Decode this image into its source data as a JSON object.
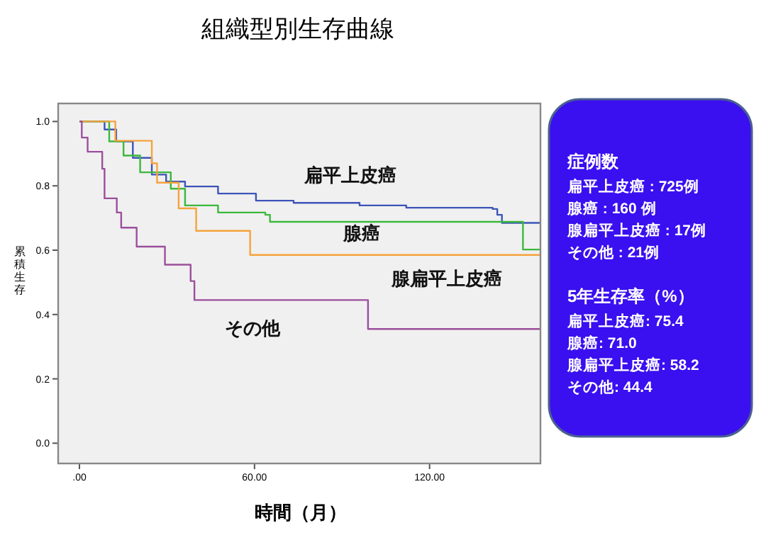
{
  "chart_data": [
    {
      "type": "step",
      "title": "組織型別生存曲線",
      "xlabel": "時間（月）",
      "ylabel": "累積生存",
      "xlim": [
        -7.3,
        158
      ],
      "ylim": [
        -0.063,
        1.056
      ],
      "xticks": [
        {
          "value": 0,
          "label": ".00"
        },
        {
          "value": 60,
          "label": "60.00"
        },
        {
          "value": 120,
          "label": "120.00"
        }
      ],
      "yticks": [
        {
          "value": 0,
          "label": "0.0"
        },
        0.2,
        0.4,
        0.6,
        0.8,
        {
          "value": 1,
          "label": "1.0"
        }
      ],
      "grid": false,
      "line_style": "solid",
      "series": [
        {
          "color": "#3d55b8",
          "x": [
            0,
            1.3,
            8.6,
            12.6,
            18.3,
            24.8,
            29.7,
            36.2,
            47.5,
            60.5,
            73.4,
            96,
            112,
            141.6,
            143.2,
            144.8,
            158
          ],
          "values": [
            1.0,
            1.0,
            0.975,
            0.938,
            0.887,
            0.835,
            0.813,
            0.798,
            0.776,
            0.754,
            0.747,
            0.739,
            0.732,
            0.728,
            0.71,
            0.685,
            0.685
          ]
        },
        {
          "color": "#3cb83c",
          "x": [
            0,
            10.2,
            15.1,
            20.8,
            31.3,
            36.2,
            47.5,
            63.7,
            65.3,
            152,
            158
          ],
          "values": [
            1.0,
            0.938,
            0.894,
            0.842,
            0.791,
            0.739,
            0.717,
            0.71,
            0.688,
            0.602,
            0.602
          ]
        },
        {
          "color": "#f5a33c",
          "x": [
            0,
            12.3,
            24.8,
            26.6,
            34,
            40,
            58.5,
            158
          ],
          "values": [
            1.0,
            0.94,
            0.87,
            0.81,
            0.73,
            0.66,
            0.585,
            0.585
          ]
        },
        {
          "color": "#9b4f9b",
          "x": [
            0,
            0.8,
            2.8,
            7.8,
            8.6,
            12.8,
            14.3,
            19.6,
            29.3,
            38.1,
            39.4,
            98.9,
            158
          ],
          "values": [
            1.0,
            0.95,
            0.906,
            0.853,
            0.761,
            0.717,
            0.67,
            0.611,
            0.555,
            0.504,
            0.445,
            0.355,
            0.355
          ]
        }
      ],
      "annotations": [
        "扁平上皮癌",
        "腺癌",
        "腺扁平上皮癌",
        "その他"
      ]
    },
    {
      "type": "other",
      "annotations": [
        "症例数",
        "扁平上皮癌 : 725例",
        "腺癌 : 160 例",
        "腺扁平上皮癌 : 17例",
        "その他 : 21例",
        "5年生存率（%）",
        "扁平上皮癌: 75.4",
        "腺癌: 71.0",
        "腺扁平上皮癌: 58.2",
        "その他: 44.4"
      ]
    }
  ]
}
